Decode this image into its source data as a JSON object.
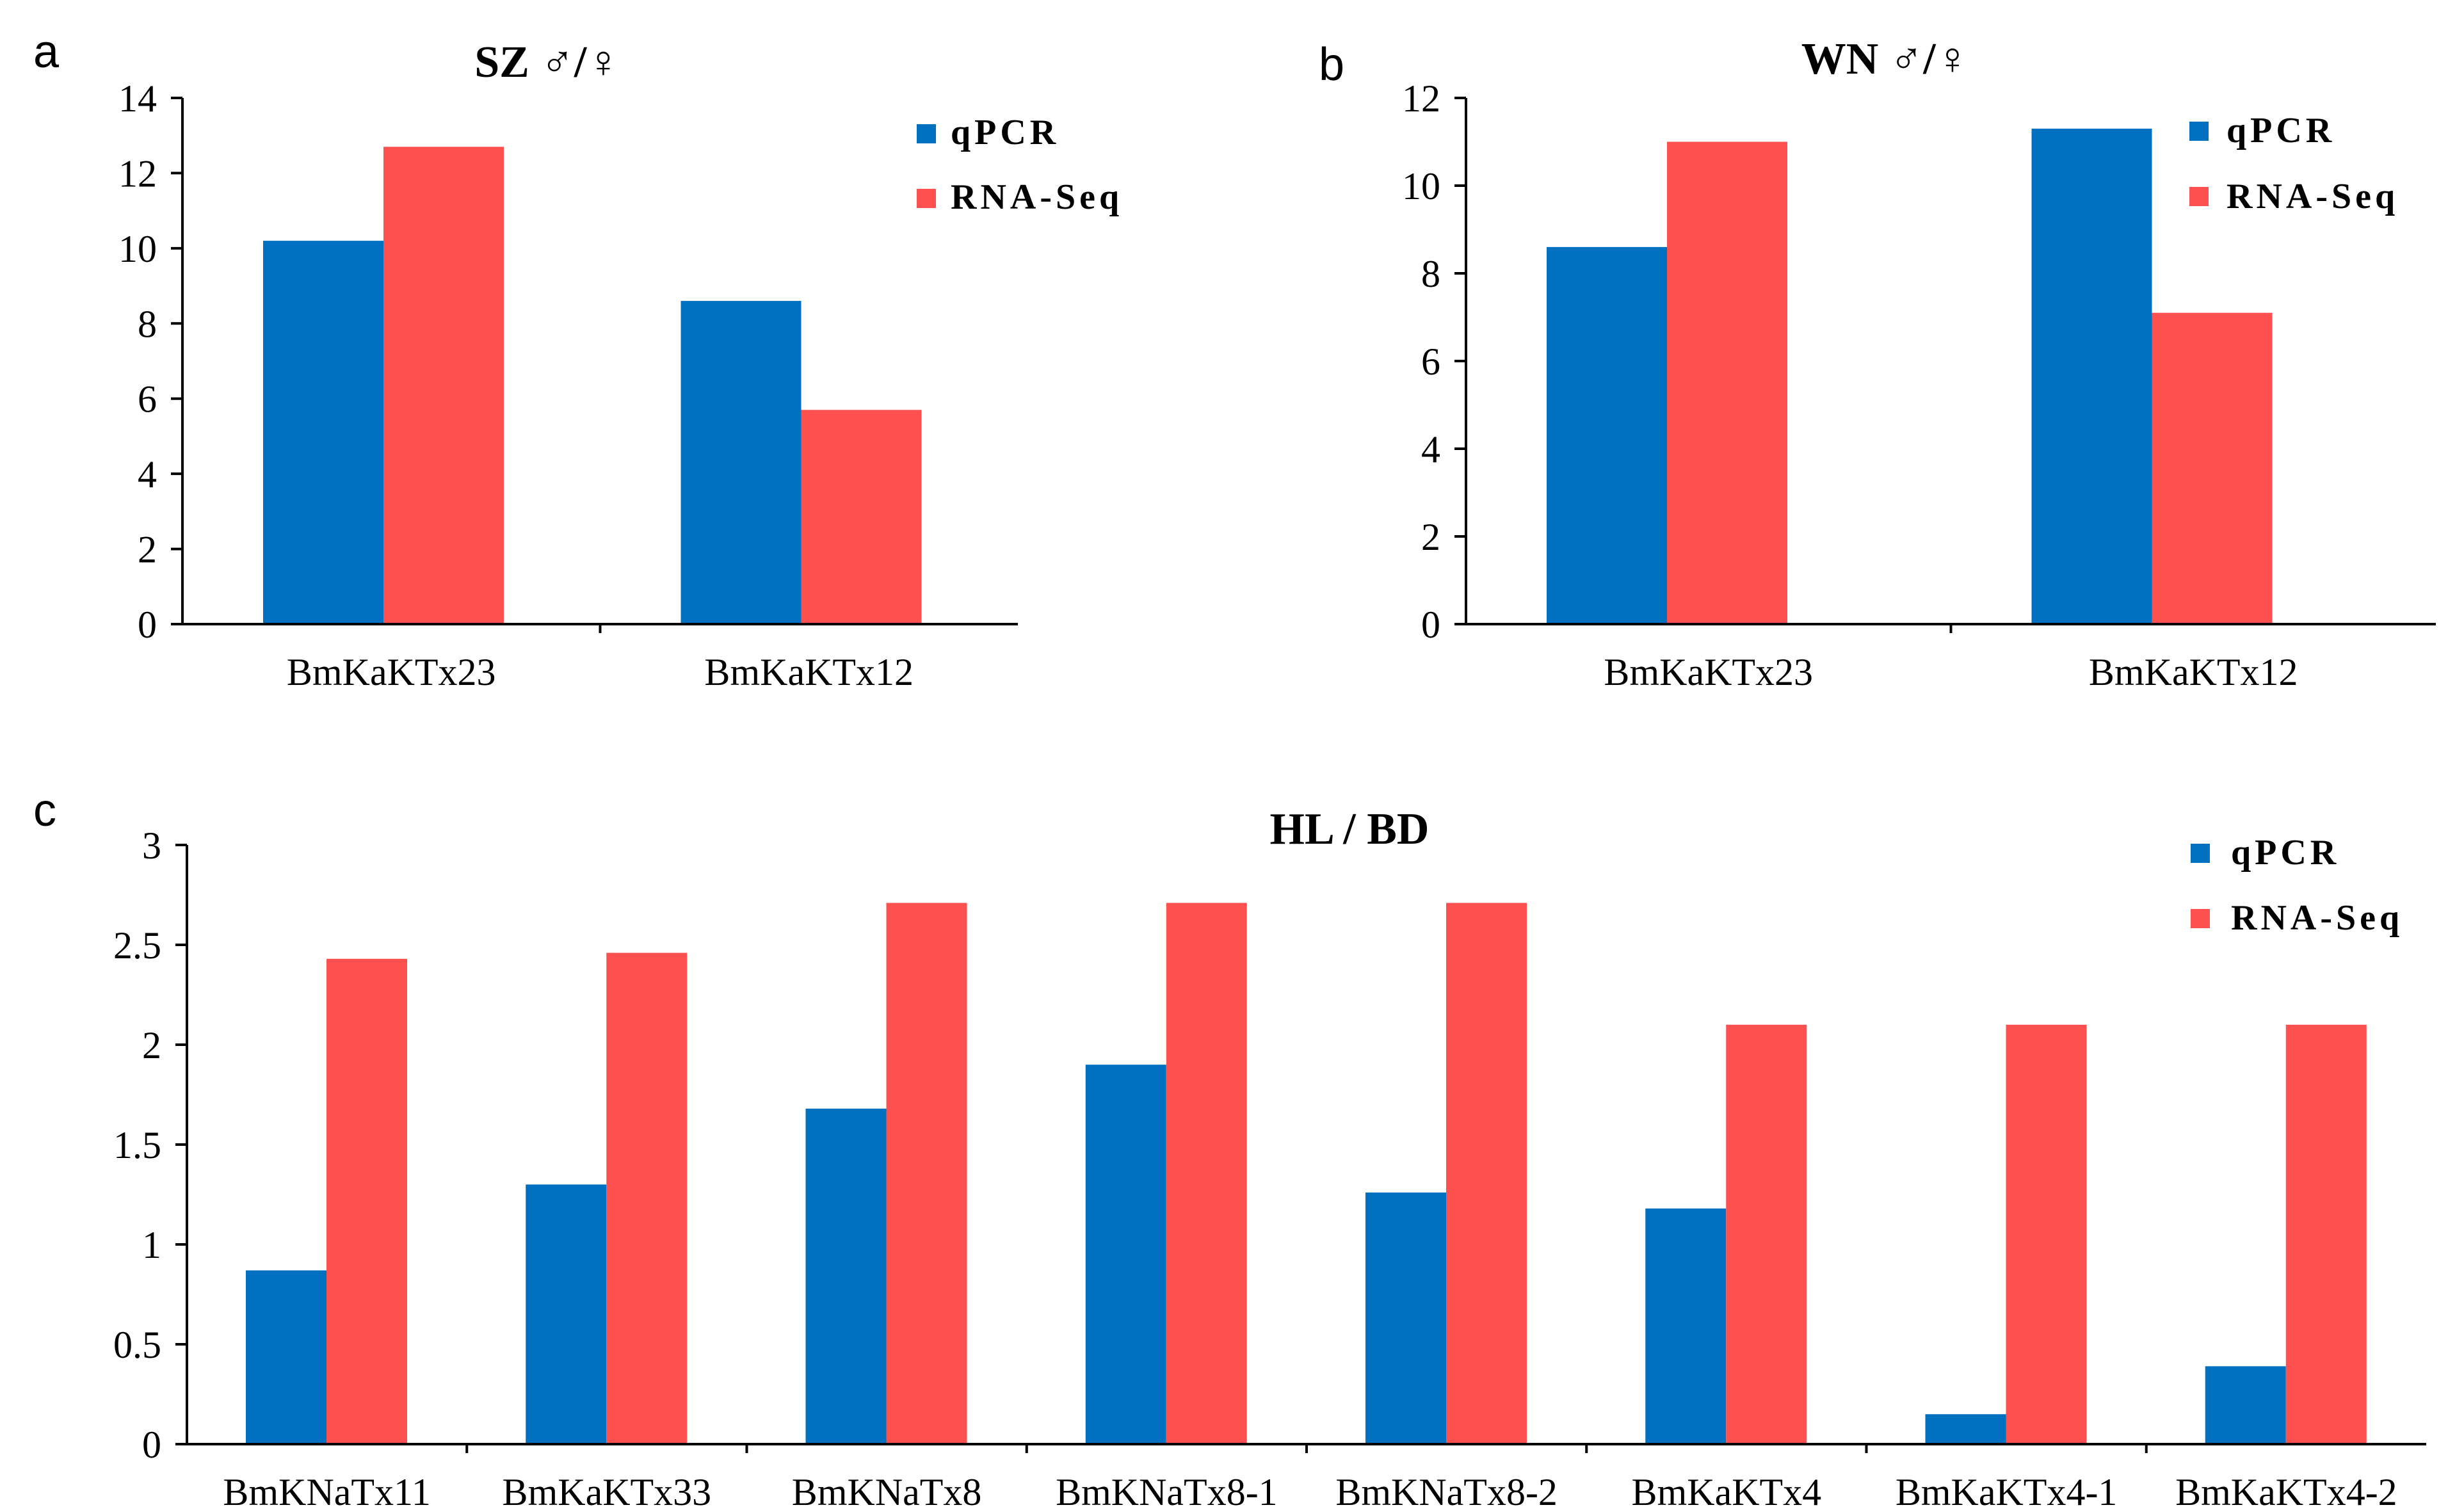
{
  "colors": {
    "qpcr": "#0070C0",
    "rnaseq": "#FF5050"
  },
  "chart_data": [
    {
      "id": "a",
      "panel_label": "a",
      "type": "bar",
      "title": "SZ ♂/♀",
      "categories": [
        "BmKaKTx23",
        "BmKaKTx12"
      ],
      "series": [
        {
          "name": "qPCR",
          "values": [
            10.2,
            8.6
          ]
        },
        {
          "name": "RNA-Seq",
          "values": [
            12.7,
            5.7
          ]
        }
      ],
      "yticks": [
        "0",
        "2",
        "4",
        "6",
        "8",
        "10",
        "12",
        "14"
      ],
      "ylim": [
        0,
        14
      ],
      "xlabel": "",
      "ylabel": "",
      "legend": "top-right"
    },
    {
      "id": "b",
      "panel_label": "b",
      "type": "bar",
      "title": "WN ♂/♀",
      "categories": [
        "BmKaKTx23",
        "BmKaKTx12"
      ],
      "series": [
        {
          "name": "qPCR",
          "values": [
            8.6,
            11.3
          ]
        },
        {
          "name": "RNA-Seq",
          "values": [
            11.0,
            7.1
          ]
        }
      ],
      "yticks": [
        "0",
        "2",
        "4",
        "6",
        "8",
        "10",
        "12"
      ],
      "ylim": [
        0,
        12
      ],
      "xlabel": "",
      "ylabel": "",
      "legend": "top-right"
    },
    {
      "id": "c",
      "panel_label": "c",
      "type": "bar",
      "title": "HL / BD",
      "categories": [
        "BmKNaTx11",
        "BmKaKTx33",
        "BmKNaTx8",
        "BmKNaTx8-1",
        "BmKNaTx8-2",
        "BmKaKTx4",
        "BmKaKTx4-1",
        "BmKaKTx4-2"
      ],
      "series": [
        {
          "name": "qPCR",
          "values": [
            0.87,
            1.3,
            1.68,
            1.9,
            1.26,
            1.18,
            0.15,
            0.39
          ]
        },
        {
          "name": "RNA-Seq",
          "values": [
            2.43,
            2.46,
            2.71,
            2.71,
            2.71,
            2.1,
            2.1,
            2.1
          ]
        }
      ],
      "yticks": [
        "0",
        "0.5",
        "1",
        "1.5",
        "2",
        "2.5",
        "3"
      ],
      "ylim": [
        0,
        3
      ],
      "xlabel": "",
      "ylabel": "",
      "legend": "top-right"
    }
  ]
}
